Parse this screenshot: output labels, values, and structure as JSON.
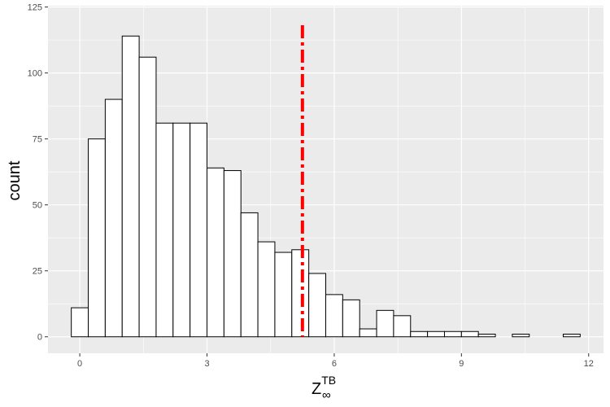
{
  "chart_data": {
    "type": "histogram",
    "xlabel": "Z",
    "xlabel_superscript": "TB",
    "xlabel_subscript": "∞",
    "ylabel": "count",
    "xlim": [
      -0.75,
      12.35
    ],
    "ylim": [
      -6.25,
      125.5
    ],
    "x_ticks": [
      0,
      3,
      6,
      9,
      12
    ],
    "y_ticks": [
      0,
      25,
      50,
      75,
      100,
      125
    ],
    "bin_width": 0.4,
    "bins": [
      {
        "x0": -0.2,
        "x1": 0.2,
        "count": 11
      },
      {
        "x0": 0.2,
        "x1": 0.6,
        "count": 75
      },
      {
        "x0": 0.6,
        "x1": 1.0,
        "count": 90
      },
      {
        "x0": 1.0,
        "x1": 1.4,
        "count": 114
      },
      {
        "x0": 1.4,
        "x1": 1.8,
        "count": 106
      },
      {
        "x0": 1.8,
        "x1": 2.2,
        "count": 81
      },
      {
        "x0": 2.2,
        "x1": 2.6,
        "count": 81
      },
      {
        "x0": 2.6,
        "x1": 3.0,
        "count": 81
      },
      {
        "x0": 3.0,
        "x1": 3.4,
        "count": 64
      },
      {
        "x0": 3.4,
        "x1": 3.8,
        "count": 63
      },
      {
        "x0": 3.8,
        "x1": 4.2,
        "count": 47
      },
      {
        "x0": 4.2,
        "x1": 4.6,
        "count": 36
      },
      {
        "x0": 4.6,
        "x1": 5.0,
        "count": 32
      },
      {
        "x0": 5.0,
        "x1": 5.4,
        "count": 33
      },
      {
        "x0": 5.4,
        "x1": 5.8,
        "count": 24
      },
      {
        "x0": 5.8,
        "x1": 6.2,
        "count": 16
      },
      {
        "x0": 6.2,
        "x1": 6.6,
        "count": 14
      },
      {
        "x0": 6.6,
        "x1": 7.0,
        "count": 3
      },
      {
        "x0": 7.0,
        "x1": 7.4,
        "count": 10
      },
      {
        "x0": 7.4,
        "x1": 7.8,
        "count": 8
      },
      {
        "x0": 7.8,
        "x1": 8.2,
        "count": 2
      },
      {
        "x0": 8.2,
        "x1": 8.6,
        "count": 2
      },
      {
        "x0": 8.6,
        "x1": 9.0,
        "count": 2
      },
      {
        "x0": 9.0,
        "x1": 9.4,
        "count": 2
      },
      {
        "x0": 9.4,
        "x1": 9.8,
        "count": 1
      },
      {
        "x0": 9.8,
        "x1": 10.2,
        "count": 0
      },
      {
        "x0": 10.2,
        "x1": 10.6,
        "count": 1
      },
      {
        "x0": 10.6,
        "x1": 11.0,
        "count": 0
      },
      {
        "x0": 11.0,
        "x1": 11.4,
        "count": 0
      },
      {
        "x0": 11.4,
        "x1": 11.8,
        "count": 1
      }
    ],
    "vline": {
      "x": 5.25,
      "color": "#ff0000",
      "style": "dot-dash"
    },
    "colors": {
      "panel": "#ebebeb",
      "grid": "#ffffff",
      "bar_fill": "#ffffff",
      "bar_stroke": "#000000",
      "tick_text": "#4d4d4d"
    },
    "grid": true
  }
}
